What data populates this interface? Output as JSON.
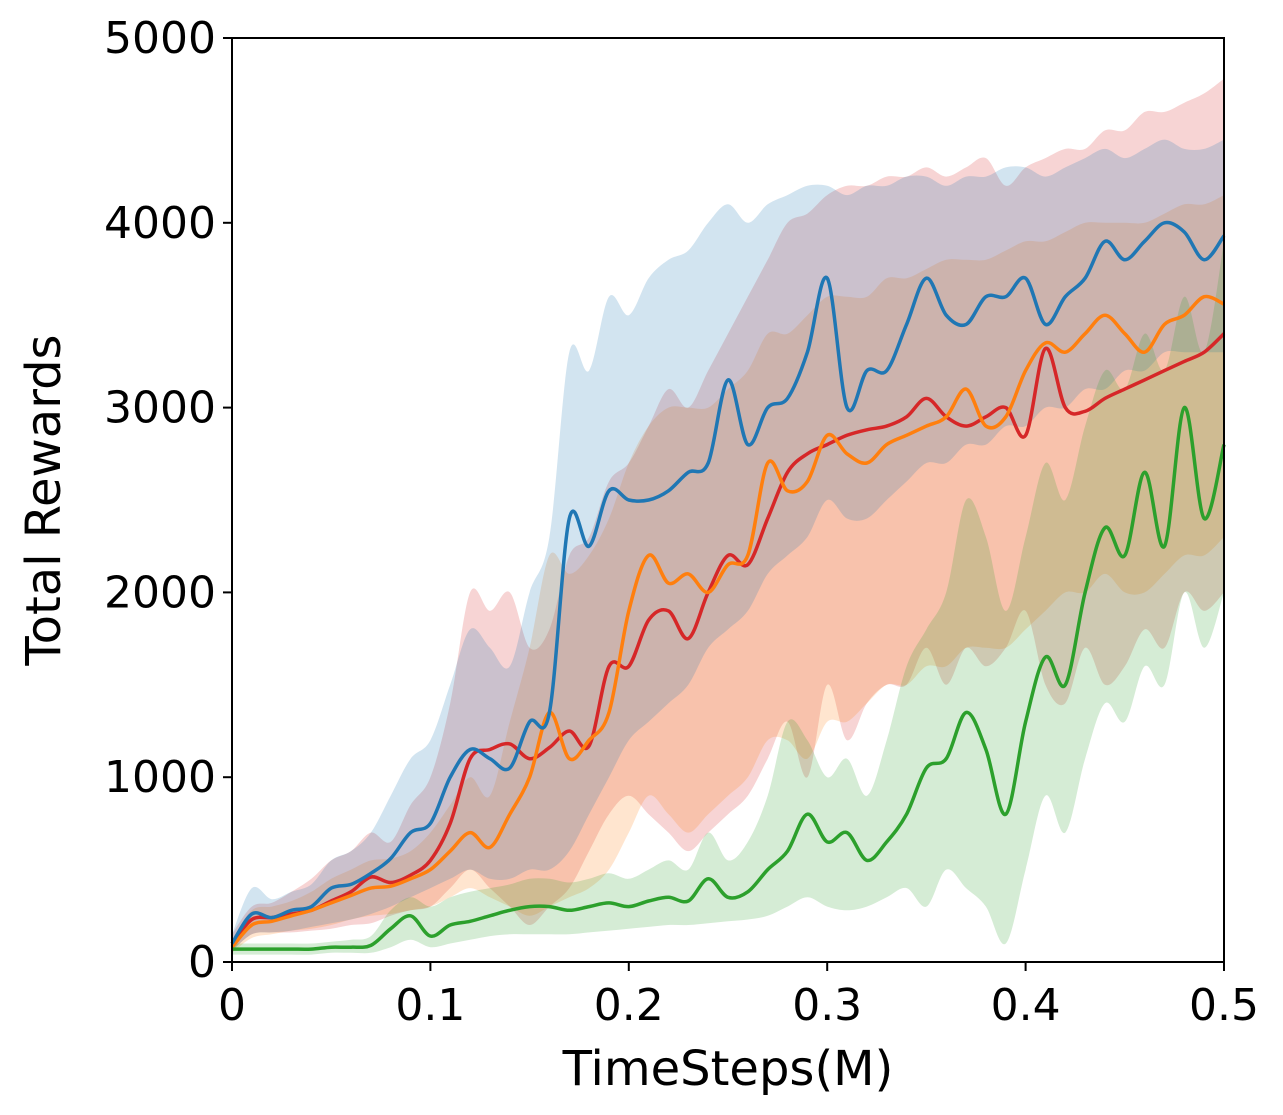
{
  "chart_data": {
    "type": "line",
    "title": "",
    "xlabel": "TimeSteps(M)",
    "ylabel": "Total Rewards",
    "xlim": [
      0,
      0.5
    ],
    "ylim": [
      0,
      5000
    ],
    "xticks": [
      0,
      0.1,
      0.2,
      0.3,
      0.4,
      0.5
    ],
    "xtick_labels": [
      "0",
      "0.1",
      "0.2",
      "0.3",
      "0.4",
      "0.5"
    ],
    "yticks": [
      0,
      1000,
      2000,
      3000,
      4000,
      5000
    ],
    "ytick_labels": [
      "0",
      "1000",
      "2000",
      "3000",
      "4000",
      "5000"
    ],
    "grid": false,
    "legend": "none",
    "band_opacity": 0.2,
    "series": [
      {
        "color": "#d62728",
        "x": [
          0,
          0.01,
          0.02,
          0.03,
          0.04,
          0.05,
          0.06,
          0.07,
          0.08,
          0.09,
          0.1,
          0.11,
          0.12,
          0.13,
          0.14,
          0.15,
          0.16,
          0.17,
          0.18,
          0.19,
          0.2,
          0.21,
          0.22,
          0.23,
          0.24,
          0.25,
          0.26,
          0.27,
          0.28,
          0.29,
          0.3,
          0.31,
          0.32,
          0.33,
          0.34,
          0.35,
          0.36,
          0.37,
          0.38,
          0.39,
          0.4,
          0.41,
          0.42,
          0.43,
          0.44,
          0.45,
          0.46,
          0.47,
          0.48,
          0.49,
          0.5
        ],
        "mean": [
          100,
          230,
          240,
          260,
          280,
          330,
          380,
          460,
          430,
          470,
          550,
          750,
          1100,
          1150,
          1180,
          1100,
          1160,
          1250,
          1170,
          1600,
          1600,
          1850,
          1900,
          1750,
          2000,
          2200,
          2150,
          2400,
          2650,
          2750,
          2800,
          2850,
          2880,
          2900,
          2950,
          3050,
          2950,
          2900,
          2950,
          3000,
          2850,
          3320,
          3000,
          2980,
          3050,
          3100,
          3150,
          3200,
          3250,
          3300,
          3400
        ],
        "lower": [
          60,
          150,
          160,
          160,
          170,
          180,
          200,
          210,
          250,
          280,
          300,
          400,
          500,
          400,
          300,
          200,
          300,
          400,
          600,
          800,
          900,
          800,
          700,
          600,
          700,
          800,
          900,
          1100,
          1300,
          1000,
          1500,
          1200,
          1400,
          1500,
          1500,
          1700,
          1500,
          1700,
          1600,
          1700,
          1900,
          1500,
          1400,
          1700,
          1500,
          1600,
          1800,
          1700,
          2000,
          1900,
          2000
        ],
        "upper": [
          150,
          300,
          320,
          380,
          450,
          550,
          600,
          700,
          650,
          850,
          1000,
          1400,
          2000,
          1900,
          2000,
          1700,
          1800,
          2200,
          2300,
          2600,
          2700,
          2900,
          3100,
          3000,
          3200,
          3400,
          3600,
          3800,
          4000,
          4050,
          4150,
          4200,
          4200,
          4250,
          4250,
          4300,
          4250,
          4300,
          4350,
          4200,
          4300,
          4350,
          4400,
          4400,
          4500,
          4500,
          4600,
          4600,
          4650,
          4700,
          4780
        ]
      },
      {
        "color": "#ff7f0e",
        "x": [
          0,
          0.01,
          0.02,
          0.03,
          0.04,
          0.05,
          0.06,
          0.07,
          0.08,
          0.09,
          0.1,
          0.11,
          0.12,
          0.13,
          0.14,
          0.15,
          0.16,
          0.17,
          0.18,
          0.19,
          0.2,
          0.21,
          0.22,
          0.23,
          0.24,
          0.25,
          0.26,
          0.27,
          0.28,
          0.29,
          0.3,
          0.31,
          0.32,
          0.33,
          0.34,
          0.35,
          0.36,
          0.37,
          0.38,
          0.39,
          0.4,
          0.41,
          0.42,
          0.43,
          0.44,
          0.45,
          0.46,
          0.47,
          0.48,
          0.49,
          0.5
        ],
        "mean": [
          80,
          200,
          220,
          250,
          280,
          320,
          360,
          400,
          410,
          450,
          500,
          600,
          700,
          620,
          800,
          1000,
          1350,
          1100,
          1200,
          1350,
          1900,
          2200,
          2050,
          2100,
          2000,
          2150,
          2200,
          2700,
          2550,
          2600,
          2850,
          2750,
          2700,
          2800,
          2850,
          2900,
          2950,
          3100,
          2900,
          2950,
          3200,
          3350,
          3300,
          3400,
          3500,
          3400,
          3300,
          3450,
          3500,
          3600,
          3560
        ],
        "lower": [
          50,
          130,
          150,
          170,
          180,
          200,
          230,
          250,
          260,
          280,
          300,
          350,
          400,
          350,
          300,
          250,
          300,
          350,
          400,
          500,
          700,
          900,
          800,
          700,
          800,
          900,
          1000,
          1200,
          1200,
          1100,
          1300,
          1300,
          1400,
          1500,
          1500,
          1600,
          1600,
          1700,
          1700,
          1700,
          1800,
          1900,
          2000,
          2000,
          2100,
          2000,
          2000,
          2100,
          2200,
          2200,
          2300
        ],
        "upper": [
          120,
          280,
          300,
          330,
          380,
          450,
          500,
          550,
          560,
          600,
          700,
          850,
          1000,
          900,
          1300,
          1700,
          2200,
          2100,
          2200,
          2400,
          2700,
          2900,
          3000,
          3000,
          3000,
          3100,
          3200,
          3400,
          3400,
          3500,
          3600,
          3600,
          3600,
          3700,
          3700,
          3750,
          3800,
          3800,
          3800,
          3850,
          3900,
          3900,
          3950,
          4000,
          4000,
          4000,
          4000,
          4050,
          4100,
          4100,
          4150
        ]
      },
      {
        "color": "#1f77b4",
        "x": [
          0,
          0.01,
          0.02,
          0.03,
          0.04,
          0.05,
          0.06,
          0.07,
          0.08,
          0.09,
          0.1,
          0.11,
          0.12,
          0.13,
          0.14,
          0.15,
          0.16,
          0.17,
          0.18,
          0.19,
          0.2,
          0.21,
          0.22,
          0.23,
          0.24,
          0.25,
          0.26,
          0.27,
          0.28,
          0.29,
          0.3,
          0.31,
          0.32,
          0.33,
          0.34,
          0.35,
          0.36,
          0.37,
          0.38,
          0.39,
          0.4,
          0.41,
          0.42,
          0.43,
          0.44,
          0.45,
          0.46,
          0.47,
          0.48,
          0.49,
          0.5
        ],
        "mean": [
          100,
          260,
          240,
          280,
          300,
          400,
          420,
          480,
          560,
          700,
          750,
          1000,
          1150,
          1100,
          1050,
          1300,
          1350,
          2400,
          2250,
          2550,
          2500,
          2500,
          2550,
          2650,
          2700,
          3150,
          2800,
          3000,
          3050,
          3300,
          3700,
          3000,
          3200,
          3200,
          3450,
          3700,
          3500,
          3450,
          3600,
          3600,
          3700,
          3450,
          3600,
          3700,
          3900,
          3800,
          3900,
          4000,
          3950,
          3800,
          3930
        ],
        "lower": [
          60,
          150,
          160,
          170,
          190,
          210,
          230,
          260,
          300,
          350,
          400,
          450,
          500,
          450,
          450,
          500,
          500,
          600,
          800,
          1000,
          1200,
          1300,
          1400,
          1500,
          1700,
          1800,
          1900,
          2100,
          2200,
          2300,
          2500,
          2400,
          2400,
          2500,
          2600,
          2700,
          2700,
          2800,
          2800,
          2900,
          2900,
          3000,
          3000,
          3100,
          3100,
          3200,
          3200,
          3300,
          3300,
          3300,
          3300
        ],
        "upper": [
          150,
          400,
          340,
          380,
          420,
          550,
          600,
          700,
          900,
          1100,
          1200,
          1500,
          1800,
          1700,
          1600,
          2000,
          2300,
          3300,
          3200,
          3600,
          3500,
          3700,
          3800,
          3850,
          4000,
          4100,
          4000,
          4100,
          4150,
          4200,
          4200,
          4150,
          4200,
          4200,
          4250,
          4250,
          4200,
          4250,
          4250,
          4300,
          4300,
          4250,
          4300,
          4350,
          4400,
          4350,
          4400,
          4450,
          4400,
          4400,
          4450
        ]
      },
      {
        "color": "#2ca02c",
        "x": [
          0,
          0.01,
          0.02,
          0.03,
          0.04,
          0.05,
          0.06,
          0.07,
          0.08,
          0.09,
          0.1,
          0.11,
          0.12,
          0.13,
          0.14,
          0.15,
          0.16,
          0.17,
          0.18,
          0.19,
          0.2,
          0.21,
          0.22,
          0.23,
          0.24,
          0.25,
          0.26,
          0.27,
          0.28,
          0.29,
          0.3,
          0.31,
          0.32,
          0.33,
          0.34,
          0.35,
          0.36,
          0.37,
          0.38,
          0.39,
          0.4,
          0.41,
          0.42,
          0.43,
          0.44,
          0.45,
          0.46,
          0.47,
          0.48,
          0.49,
          0.5
        ],
        "mean": [
          70,
          70,
          70,
          70,
          70,
          80,
          80,
          90,
          180,
          250,
          140,
          200,
          220,
          250,
          280,
          300,
          300,
          280,
          300,
          320,
          300,
          330,
          350,
          330,
          450,
          350,
          380,
          500,
          600,
          800,
          650,
          700,
          550,
          650,
          800,
          1050,
          1100,
          1350,
          1150,
          800,
          1300,
          1650,
          1500,
          2000,
          2350,
          2200,
          2650,
          2250,
          3000,
          2400,
          2800
        ],
        "lower": [
          40,
          40,
          40,
          40,
          40,
          50,
          50,
          50,
          80,
          120,
          80,
          100,
          120,
          140,
          150,
          150,
          150,
          150,
          160,
          170,
          180,
          190,
          200,
          200,
          210,
          220,
          230,
          250,
          300,
          350,
          300,
          280,
          300,
          350,
          400,
          300,
          500,
          400,
          300,
          100,
          500,
          900,
          700,
          1100,
          1400,
          1300,
          1600,
          1500,
          2000,
          1700,
          2000
        ],
        "upper": [
          100,
          100,
          100,
          100,
          100,
          110,
          120,
          140,
          280,
          350,
          300,
          350,
          380,
          400,
          420,
          450,
          450,
          430,
          450,
          480,
          450,
          500,
          550,
          500,
          700,
          550,
          650,
          900,
          1300,
          1200,
          1000,
          1100,
          900,
          1200,
          1600,
          1800,
          2000,
          2500,
          2300,
          1900,
          2300,
          2700,
          2500,
          2900,
          3200,
          3100,
          3400,
          3200,
          3600,
          3300,
          3900
        ]
      }
    ]
  }
}
